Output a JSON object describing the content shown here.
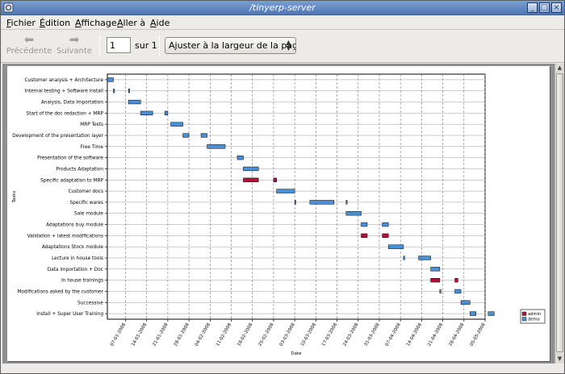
{
  "window": {
    "title": "/tinyerp-server"
  },
  "menu": {
    "items": [
      {
        "first": "F",
        "rest": "ichier"
      },
      {
        "first": "É",
        "rest": "dition"
      },
      {
        "first": "A",
        "rest": "ffichage"
      },
      {
        "first": "A",
        "rest": "ller à"
      },
      {
        "first": "A",
        "rest": "ide"
      }
    ]
  },
  "toolbar": {
    "prev_label": "Précédente",
    "next_label": "Suivante",
    "page_value": "1",
    "page_of": "sur 1",
    "zoom_value": "Ajuster à la largeur de la page"
  },
  "colors": {
    "admin": "#b5123a",
    "demo": "#4a90d9",
    "title_bar": "#5a80bd"
  },
  "chart_data": {
    "type": "gantt",
    "title": "",
    "xlabel": "Date",
    "ylabel": "Tasks",
    "x_tick_labels": [
      "07-01-2008",
      "14-01-2008",
      "21-01-2008",
      "28-01-2008",
      "04-02-2008",
      "11-02-2008",
      "18-02-2008",
      "25-02-2008",
      "03-03-2008",
      "10-03-2008",
      "17-03-2008",
      "24-03-2008",
      "31-03-2008",
      "07-04-2008",
      "14-04-2008",
      "21-04-2008",
      "28-04-2008",
      "05-05-2008"
    ],
    "x_range": [
      "2008-01-01",
      "2008-05-05"
    ],
    "grid": true,
    "legend_position": "bottom-right",
    "series": [
      {
        "name": "admin"
      },
      {
        "name": "demo"
      }
    ],
    "tasks": [
      {
        "name": "Customer analysis + Architecture",
        "bars": [
          {
            "series": "demo",
            "start": "2008-01-01",
            "end": "2008-01-03"
          }
        ]
      },
      {
        "name": "Internal testing + Software install",
        "bars": [
          {
            "series": "demo",
            "start": "2008-01-03",
            "end": "2008-01-03"
          },
          {
            "series": "demo",
            "start": "2008-01-08",
            "end": "2008-01-08"
          }
        ]
      },
      {
        "name": "Analysis, Data Importation",
        "bars": [
          {
            "series": "demo",
            "start": "2008-01-08",
            "end": "2008-01-12"
          }
        ]
      },
      {
        "name": "Start of the doc redaction + MRP",
        "bars": [
          {
            "series": "demo",
            "start": "2008-01-12",
            "end": "2008-01-16"
          },
          {
            "series": "demo",
            "start": "2008-01-20",
            "end": "2008-01-21"
          }
        ]
      },
      {
        "name": "MRP Tests",
        "bars": [
          {
            "series": "demo",
            "start": "2008-01-22",
            "end": "2008-01-26"
          }
        ]
      },
      {
        "name": "Development of the presentation layer",
        "bars": [
          {
            "series": "demo",
            "start": "2008-01-26",
            "end": "2008-01-28"
          },
          {
            "series": "demo",
            "start": "2008-02-01",
            "end": "2008-02-03"
          }
        ]
      },
      {
        "name": "Free Time",
        "bars": [
          {
            "series": "demo",
            "start": "2008-02-03",
            "end": "2008-02-09"
          }
        ]
      },
      {
        "name": "Presentation of the software",
        "bars": [
          {
            "series": "demo",
            "start": "2008-02-13",
            "end": "2008-02-15"
          }
        ]
      },
      {
        "name": "Products Adaptation",
        "bars": [
          {
            "series": "demo",
            "start": "2008-02-15",
            "end": "2008-02-20"
          }
        ]
      },
      {
        "name": "Specific adaptation to MRP",
        "bars": [
          {
            "series": "admin",
            "start": "2008-02-15",
            "end": "2008-02-20"
          },
          {
            "series": "admin",
            "start": "2008-02-25",
            "end": "2008-02-26"
          }
        ]
      },
      {
        "name": "Customer docs",
        "bars": [
          {
            "series": "demo",
            "start": "2008-02-26",
            "end": "2008-03-03"
          }
        ]
      },
      {
        "name": "Specific wares",
        "bars": [
          {
            "series": "demo",
            "start": "2008-03-03",
            "end": "2008-03-03"
          },
          {
            "series": "demo",
            "start": "2008-03-08",
            "end": "2008-03-16"
          },
          {
            "series": "demo",
            "start": "2008-03-20",
            "end": "2008-03-20"
          }
        ]
      },
      {
        "name": "Sale module",
        "bars": [
          {
            "series": "demo",
            "start": "2008-03-20",
            "end": "2008-03-25"
          }
        ]
      },
      {
        "name": "Adaptations buy module",
        "bars": [
          {
            "series": "demo",
            "start": "2008-03-25",
            "end": "2008-03-27"
          },
          {
            "series": "demo",
            "start": "2008-04-01",
            "end": "2008-04-03"
          }
        ]
      },
      {
        "name": "Validation + latest modifications",
        "bars": [
          {
            "series": "admin",
            "start": "2008-03-25",
            "end": "2008-03-27"
          },
          {
            "series": "admin",
            "start": "2008-04-01",
            "end": "2008-04-03"
          }
        ]
      },
      {
        "name": "Adaptations Stock module",
        "bars": [
          {
            "series": "demo",
            "start": "2008-04-03",
            "end": "2008-04-08"
          }
        ]
      },
      {
        "name": "Lecture in house tools",
        "bars": [
          {
            "series": "demo",
            "start": "2008-04-08",
            "end": "2008-04-08"
          },
          {
            "series": "demo",
            "start": "2008-04-13",
            "end": "2008-04-17"
          }
        ]
      },
      {
        "name": "Data importation + Doc",
        "bars": [
          {
            "series": "demo",
            "start": "2008-04-17",
            "end": "2008-04-20"
          }
        ]
      },
      {
        "name": "In house trainings",
        "bars": [
          {
            "series": "admin",
            "start": "2008-04-17",
            "end": "2008-04-20"
          },
          {
            "series": "admin",
            "start": "2008-04-25",
            "end": "2008-04-26"
          }
        ]
      },
      {
        "name": "Modifications asked by the customer",
        "bars": [
          {
            "series": "demo",
            "start": "2008-04-20",
            "end": "2008-04-20"
          },
          {
            "series": "demo",
            "start": "2008-04-25",
            "end": "2008-04-27"
          }
        ]
      },
      {
        "name": "Successive",
        "bars": [
          {
            "series": "demo",
            "start": "2008-04-27",
            "end": "2008-04-30"
          }
        ]
      },
      {
        "name": "Install + Super User Training",
        "bars": [
          {
            "series": "demo",
            "start": "2008-04-30",
            "end": "2008-05-02"
          },
          {
            "series": "demo",
            "start": "2008-05-06",
            "end": "2008-05-08"
          }
        ]
      }
    ]
  }
}
